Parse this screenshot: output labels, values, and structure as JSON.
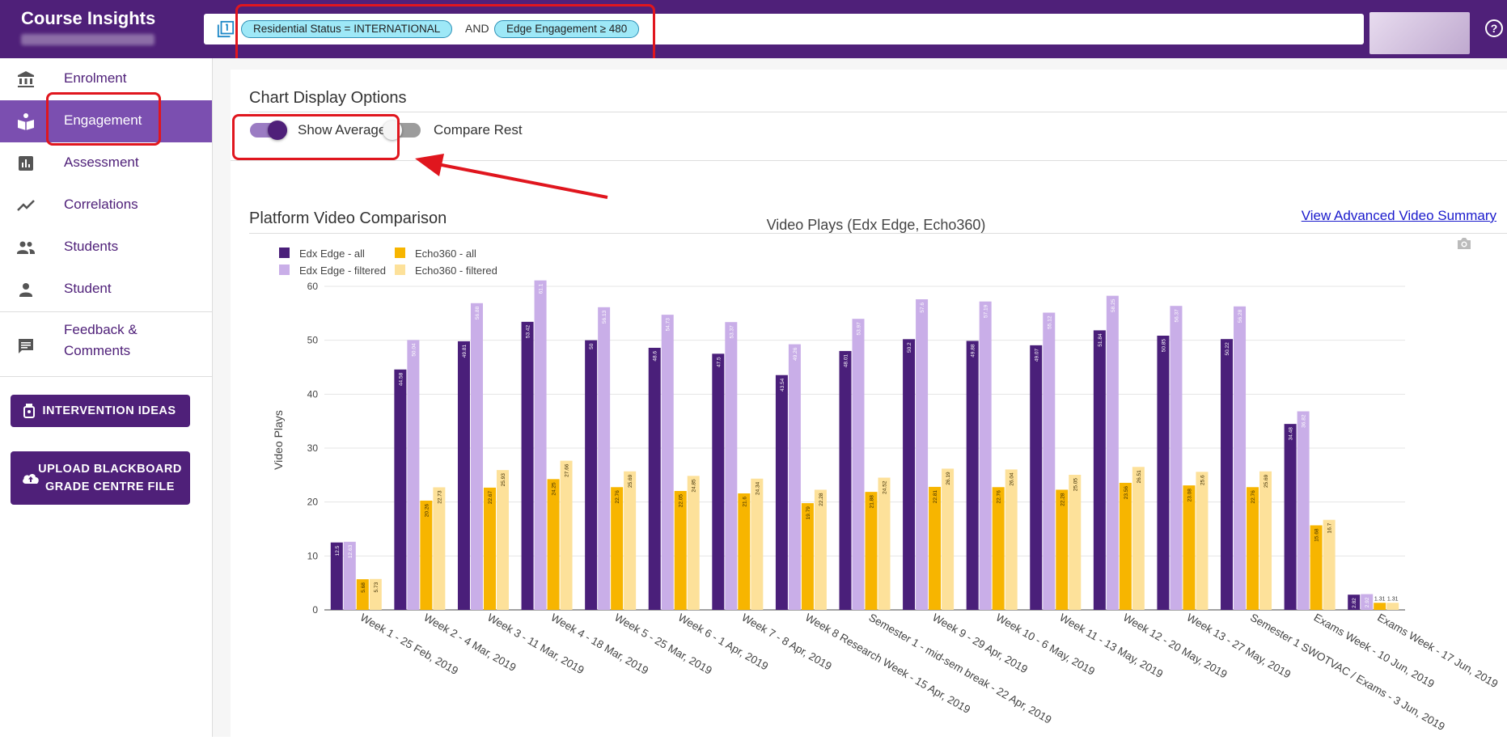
{
  "app": {
    "title": "Course Insights"
  },
  "filters": {
    "chips": [
      "Residential Status = INTERNATIONAL",
      "Edge Engagement ≥ 480"
    ],
    "joiner": "AND"
  },
  "sidebar": {
    "items": [
      {
        "label": "Enrolment",
        "icon": "bank-icon"
      },
      {
        "label": "Engagement",
        "icon": "reading-icon",
        "active": true
      },
      {
        "label": "Assessment",
        "icon": "bar-chart-icon"
      },
      {
        "label": "Correlations",
        "icon": "trend-icon"
      },
      {
        "label": "Students",
        "icon": "people-icon"
      },
      {
        "label": "Student",
        "icon": "person-icon"
      },
      {
        "label_line1": "Feedback &",
        "label_line2": "Comments",
        "icon": "comment-icon"
      }
    ],
    "buttons": {
      "intervention": "INTERVENTION IDEAS",
      "upload_line1": "UPLOAD BLACKBOARD",
      "upload_line2": "GRADE CENTRE FILE"
    }
  },
  "options": {
    "title": "Chart Display Options",
    "show_averages": {
      "label": "Show Averages",
      "on": true
    },
    "compare_rest": {
      "label": "Compare Rest",
      "on": false
    }
  },
  "video_card": {
    "title": "Platform Video Comparison",
    "link": "View Advanced Video Summary"
  },
  "colors": {
    "brand": "#4f2079",
    "accent": "#7b4fb0",
    "edx_all": "#4a1f7a",
    "edx_filtered": "#c9aee8",
    "echo_all": "#f7b500",
    "echo_filtered": "#fde19a"
  },
  "chart_data": {
    "type": "bar",
    "title": "Video Plays (Edx Edge, Echo360)",
    "ylabel": "Video Plays",
    "ylim": [
      0,
      63
    ],
    "yticks": [
      0,
      10,
      20,
      30,
      40,
      50,
      60
    ],
    "legend": "top-left",
    "categories": [
      "Week 1 - 25 Feb, 2019",
      "Week 2 - 4 Mar, 2019",
      "Week 3 - 11 Mar, 2019",
      "Week 4 - 18 Mar, 2019",
      "Week 5 - 25 Mar, 2019",
      "Week 6 - 1 Apr, 2019",
      "Week 7 - 8 Apr, 2019",
      "Week 8 Research Week - 15 Apr, 2019",
      "Semester 1 - mid-sem break - 22 Apr, 2019",
      "Week 9 - 29 Apr, 2019",
      "Week 10 - 6 May, 2019",
      "Week 11 - 13 May, 2019",
      "Week 12 - 20 May, 2019",
      "Week 13 - 27 May, 2019",
      "Semester 1 SWOTVAC / Exams - 3 Jun, 2019",
      "Exams Week - 10 Jun, 2019",
      "Exams Week - 17 Jun, 2019"
    ],
    "series": [
      {
        "name": "Edx Edge - all",
        "values": [
          12.5,
          44.58,
          49.81,
          53.42,
          50,
          48.6,
          47.5,
          43.54,
          48.01,
          50.2,
          49.88,
          49.07,
          51.84,
          50.85,
          50.22,
          34.48,
          2.82
        ],
        "labels": [
          "12.5",
          "44.58",
          "49.81",
          "53.42",
          "50",
          "48.6",
          "47.5",
          "43.54",
          "48.01",
          "50.2",
          "49.88",
          "49.07",
          "51.84",
          "50.85",
          "50.22",
          "34.48",
          "2.82"
        ]
      },
      {
        "name": "Edx Edge - filtered",
        "values": [
          12.63,
          50.04,
          56.88,
          61.1,
          56.13,
          54.73,
          53.37,
          49.26,
          53.97,
          57.6,
          57.19,
          55.12,
          58.25,
          56.37,
          56.28,
          36.82,
          2.92
        ],
        "labels": [
          "12.63",
          "50.04",
          "56.88",
          "61.1",
          "56.13",
          "54.73",
          "53.37",
          "49.26",
          "53.97",
          "57.6",
          "57.19",
          "55.12",
          "58.25",
          "56.37",
          "56.28",
          "36.82",
          "2.92"
        ]
      },
      {
        "name": "Echo360 - all",
        "values": [
          5.68,
          20.26,
          22.67,
          24.25,
          22.76,
          22.05,
          21.6,
          19.79,
          21.88,
          22.81,
          22.76,
          22.28,
          23.56,
          23.08,
          22.76,
          15.68,
          1.31
        ],
        "labels": [
          "5.68",
          "20.26",
          "22.67",
          "24.25",
          "22.76",
          "22.05",
          "21.6",
          "19.79",
          "21.88",
          "22.81",
          "22.76",
          "22.28",
          "23.56",
          "23.08",
          "22.76",
          "15.68",
          "1.31"
        ]
      },
      {
        "name": "Echo360 - filtered",
        "values": [
          5.73,
          22.73,
          25.93,
          27.66,
          25.69,
          24.85,
          24.34,
          22.28,
          24.52,
          26.19,
          26.04,
          25.05,
          26.51,
          25.6,
          25.69,
          16.7,
          1.31
        ],
        "labels": [
          "5.73",
          "22.73",
          "25.93",
          "27.66",
          "25.69",
          "24.85",
          "24.34",
          "22.28",
          "24.52",
          "26.19",
          "26.04",
          "25.05",
          "26.51",
          "25.6",
          "25.69",
          "16.7",
          "1.31"
        ]
      }
    ]
  }
}
